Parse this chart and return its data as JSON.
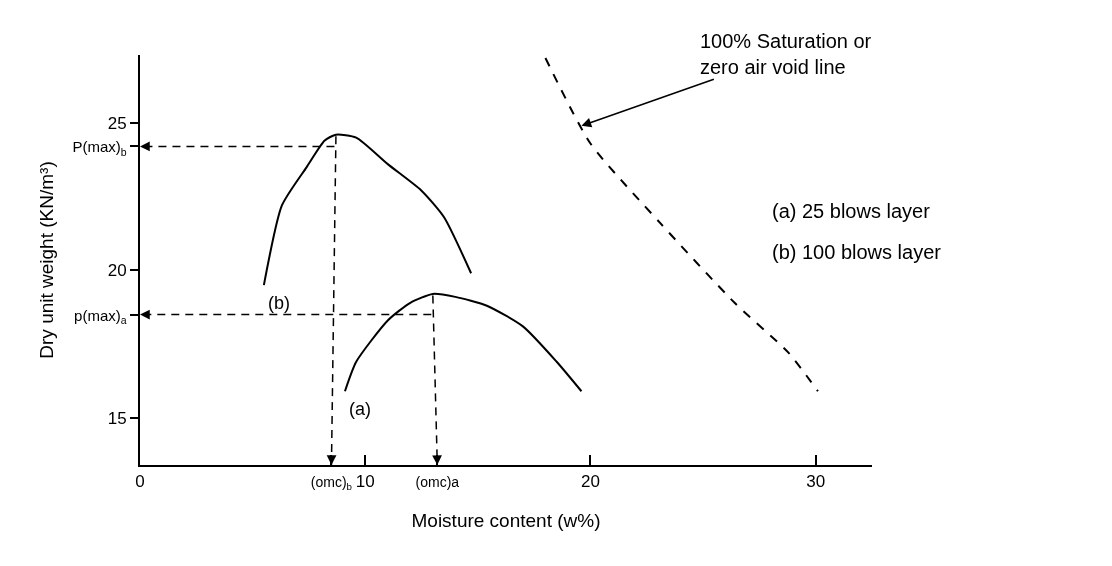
{
  "chart_data": {
    "type": "line",
    "xlabel": "Moisture content (w%)",
    "ylabel": "Dry unit weight (KN/m³)",
    "xlim": [
      0,
      32.5
    ],
    "ylim": [
      13.4,
      27.3
    ],
    "xticks": [
      0,
      {
        "value": 8.5,
        "label": "(omc)$_{b}$"
      },
      10,
      {
        "value": 13.2,
        "label": "(omc)a"
      },
      20,
      30
    ],
    "yticks": [
      15,
      {
        "value": 18.5,
        "label": "p(max)$_{a}$"
      },
      20,
      {
        "value": 24.2,
        "label": "P(max)$_{b}$"
      },
      25
    ],
    "grid": false,
    "legend": false,
    "series": [
      {
        "name": "(b)",
        "color": "#000000",
        "line_style": "solid",
        "x": [
          5.5,
          6.3,
          7.4,
          8.2,
          8.7,
          9.6,
          11.0,
          12.5,
          13.5,
          14.7
        ],
        "values": [
          19.5,
          22.2,
          23.5,
          24.4,
          24.6,
          24.5,
          23.6,
          22.7,
          21.8,
          19.9
        ]
      },
      {
        "name": "(a)",
        "color": "#000000",
        "line_style": "solid",
        "x": [
          9.1,
          9.6,
          11.0,
          12.0,
          13.0,
          14.0,
          15.4,
          17.0,
          18.5,
          19.6
        ],
        "values": [
          15.9,
          16.9,
          18.3,
          18.9,
          19.2,
          19.1,
          18.8,
          18.1,
          16.9,
          15.9
        ]
      },
      {
        "color": "#000000",
        "line_style": "dashed",
        "x": [
          18.0,
          20.0,
          23.1,
          26.4,
          28.8,
          30.1
        ],
        "values": [
          27.2,
          24.3,
          21.6,
          18.9,
          17.2,
          15.9
        ]
      }
    ],
    "annotations": [
      {
        "text": "100% Saturation or\nzero air void line",
        "x": 19.6,
        "y": 24.9
      },
      "(a) 25 blows layer",
      "(b) 100 blows layer"
    ]
  }
}
